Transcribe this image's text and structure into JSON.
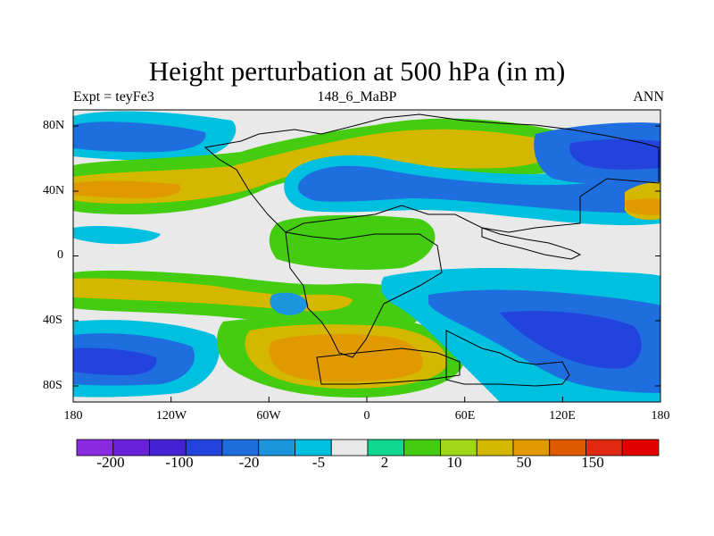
{
  "figure": {
    "title": "Height perturbation at 500 hPa (in m)",
    "left_label": "Expt = teyFe3",
    "center_label": "148_6_MaBP",
    "right_label": "ANN"
  },
  "map": {
    "projection": "cylindrical equidistant",
    "lon_range": [
      -180,
      180
    ],
    "lat_range": [
      -90,
      90
    ],
    "lat_tick_labels": [
      "80N",
      "40N",
      "0",
      "40S",
      "80S"
    ],
    "lon_tick_labels": [
      "180",
      "120W",
      "60W",
      "0",
      "60E",
      "120E",
      "180"
    ],
    "colorbar": {
      "colors": [
        "#8a2be2",
        "#6a22d8",
        "#4422d4",
        "#2244dd",
        "#1e6ee0",
        "#1a96de",
        "#00c0e0",
        "#e9e9e9",
        "#10d890",
        "#44cc10",
        "#a0d818",
        "#d4b800",
        "#e09a00",
        "#e05a00",
        "#e02a10",
        "#e00000"
      ],
      "tick_labels": [
        "-200",
        "-100",
        "-20",
        "-5",
        "2",
        "10",
        "50",
        "150"
      ]
    }
  }
}
